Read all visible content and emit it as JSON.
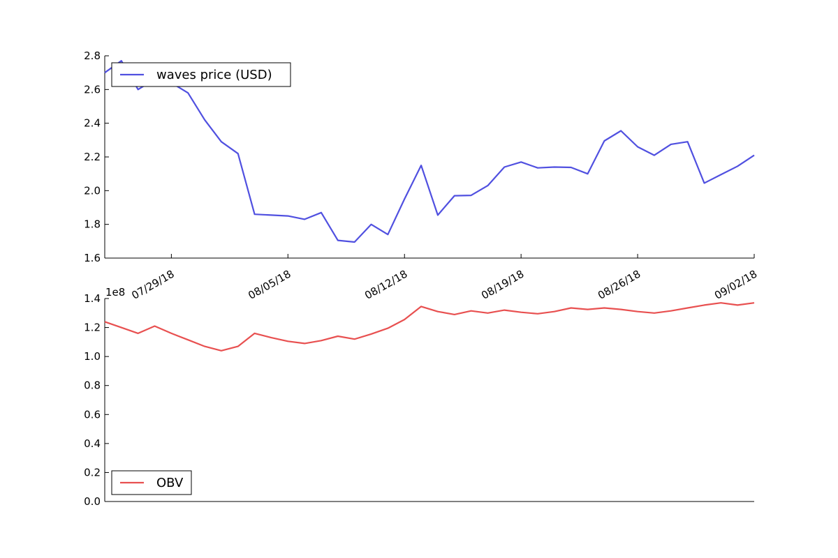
{
  "chart_data": [
    {
      "type": "line",
      "title": "",
      "xlabel": "",
      "ylabel": "",
      "legend_position": "top-left",
      "grid": false,
      "x_range": [
        "2018-07-25",
        "2018-09-02"
      ],
      "ylim": [
        1.6,
        2.8
      ],
      "yticks": [
        "1.6",
        "1.8",
        "2.0",
        "2.2",
        "2.4",
        "2.6",
        "2.8"
      ],
      "xticks": [
        {
          "date": "2018-07-29",
          "label": "07/29/18"
        },
        {
          "date": "2018-08-05",
          "label": "08/05/18"
        },
        {
          "date": "2018-08-12",
          "label": "08/12/18"
        },
        {
          "date": "2018-08-19",
          "label": "08/19/18"
        },
        {
          "date": "2018-08-26",
          "label": "08/26/18"
        },
        {
          "date": "2018-09-02",
          "label": "09/02/18"
        }
      ],
      "series": [
        {
          "name": "waves price (USD)",
          "color": "#5050e0",
          "x": [
            "2018-07-25",
            "2018-07-26",
            "2018-07-27",
            "2018-07-28",
            "2018-07-29",
            "2018-07-30",
            "2018-07-31",
            "2018-08-01",
            "2018-08-02",
            "2018-08-03",
            "2018-08-04",
            "2018-08-05",
            "2018-08-06",
            "2018-08-07",
            "2018-08-08",
            "2018-08-09",
            "2018-08-10",
            "2018-08-11",
            "2018-08-12",
            "2018-08-13",
            "2018-08-14",
            "2018-08-15",
            "2018-08-16",
            "2018-08-17",
            "2018-08-18",
            "2018-08-19",
            "2018-08-20",
            "2018-08-21",
            "2018-08-22",
            "2018-08-23",
            "2018-08-24",
            "2018-08-25",
            "2018-08-26",
            "2018-08-27",
            "2018-08-28",
            "2018-08-29",
            "2018-08-30",
            "2018-08-31",
            "2018-09-01",
            "2018-09-02"
          ],
          "values": [
            2.7,
            2.77,
            2.6,
            2.66,
            2.64,
            2.58,
            2.42,
            2.29,
            2.22,
            1.86,
            1.855,
            1.85,
            1.83,
            1.87,
            1.705,
            1.695,
            1.8,
            1.74,
            1.95,
            2.15,
            1.855,
            1.97,
            1.972,
            2.03,
            2.14,
            2.17,
            2.135,
            2.14,
            2.138,
            2.1,
            2.295,
            2.355,
            2.26,
            2.21,
            2.275,
            2.29,
            2.045,
            2.095,
            2.145,
            2.21
          ]
        }
      ]
    },
    {
      "type": "line",
      "title": "",
      "xlabel": "",
      "ylabel": "",
      "legend_position": "bottom-left",
      "grid": false,
      "x_range": [
        "2018-07-25",
        "2018-09-02"
      ],
      "ylim": [
        0.0,
        1.4
      ],
      "y_scale_label": "1e8",
      "yticks": [
        "0.0",
        "0.2",
        "0.4",
        "0.6",
        "0.8",
        "1.0",
        "1.2",
        "1.4"
      ],
      "series": [
        {
          "name": "OBV",
          "color": "#e85050",
          "x": [
            "2018-07-25",
            "2018-07-26",
            "2018-07-27",
            "2018-07-28",
            "2018-07-29",
            "2018-07-30",
            "2018-07-31",
            "2018-08-01",
            "2018-08-02",
            "2018-08-03",
            "2018-08-04",
            "2018-08-05",
            "2018-08-06",
            "2018-08-07",
            "2018-08-08",
            "2018-08-09",
            "2018-08-10",
            "2018-08-11",
            "2018-08-12",
            "2018-08-13",
            "2018-08-14",
            "2018-08-15",
            "2018-08-16",
            "2018-08-17",
            "2018-08-18",
            "2018-08-19",
            "2018-08-20",
            "2018-08-21",
            "2018-08-22",
            "2018-08-23",
            "2018-08-24",
            "2018-08-25",
            "2018-08-26",
            "2018-08-27",
            "2018-08-28",
            "2018-08-29",
            "2018-08-30",
            "2018-08-31",
            "2018-09-01",
            "2018-09-02"
          ],
          "values": [
            1.24,
            1.2,
            1.16,
            1.21,
            1.16,
            1.115,
            1.07,
            1.04,
            1.07,
            1.16,
            1.13,
            1.105,
            1.09,
            1.11,
            1.14,
            1.12,
            1.155,
            1.195,
            1.255,
            1.345,
            1.31,
            1.29,
            1.315,
            1.3,
            1.32,
            1.305,
            1.295,
            1.31,
            1.335,
            1.325,
            1.335,
            1.325,
            1.31,
            1.3,
            1.315,
            1.335,
            1.355,
            1.37,
            1.355,
            1.37
          ]
        }
      ]
    }
  ]
}
